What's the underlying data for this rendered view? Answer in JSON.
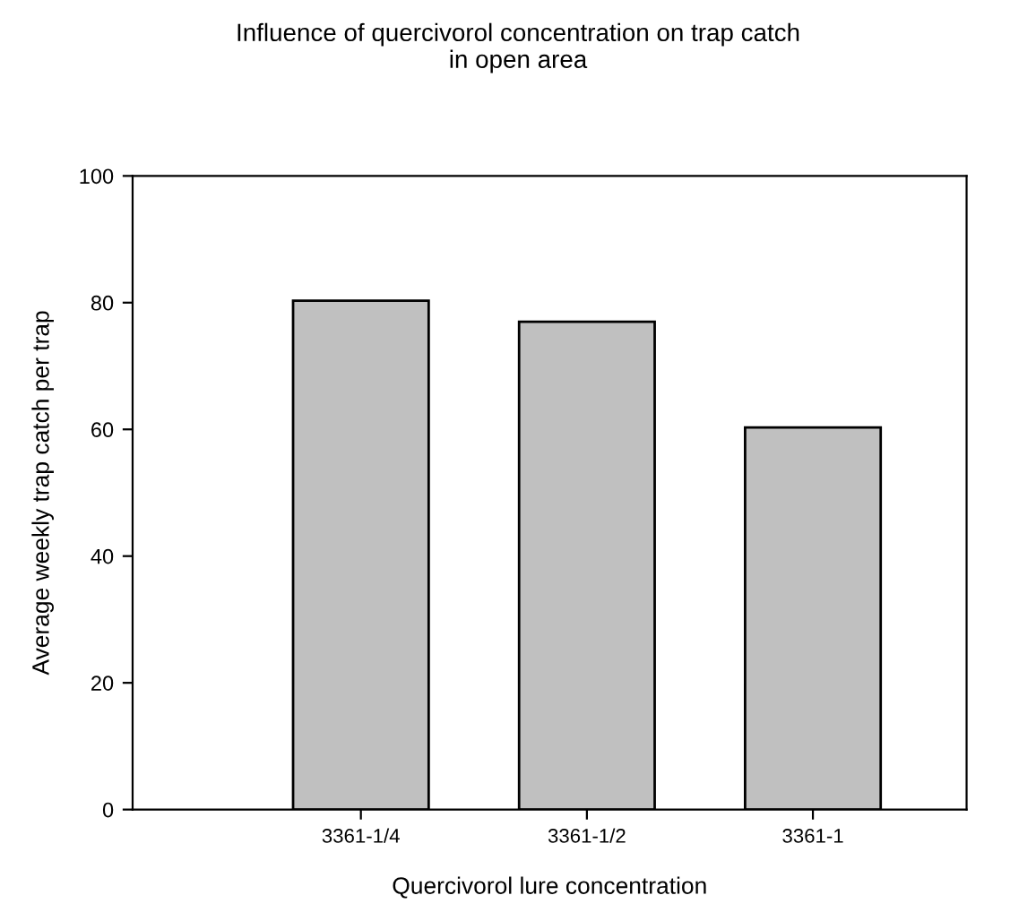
{
  "chart_data": {
    "type": "bar",
    "title": "Influence of quercivorol concentration on trap catch\nin open area",
    "xlabel": "Quercivorol lure concentration",
    "ylabel": "Average weekly trap catch per trap",
    "categories": [
      "3361-1/4",
      "3361-1/2",
      "3361-1"
    ],
    "values": [
      80.3,
      77.0,
      60.3
    ],
    "color": "#c0c0c0",
    "ylim": [
      0,
      100
    ],
    "yticks": [
      0,
      20,
      40,
      60,
      80,
      100
    ],
    "grid": false,
    "legend": false
  }
}
